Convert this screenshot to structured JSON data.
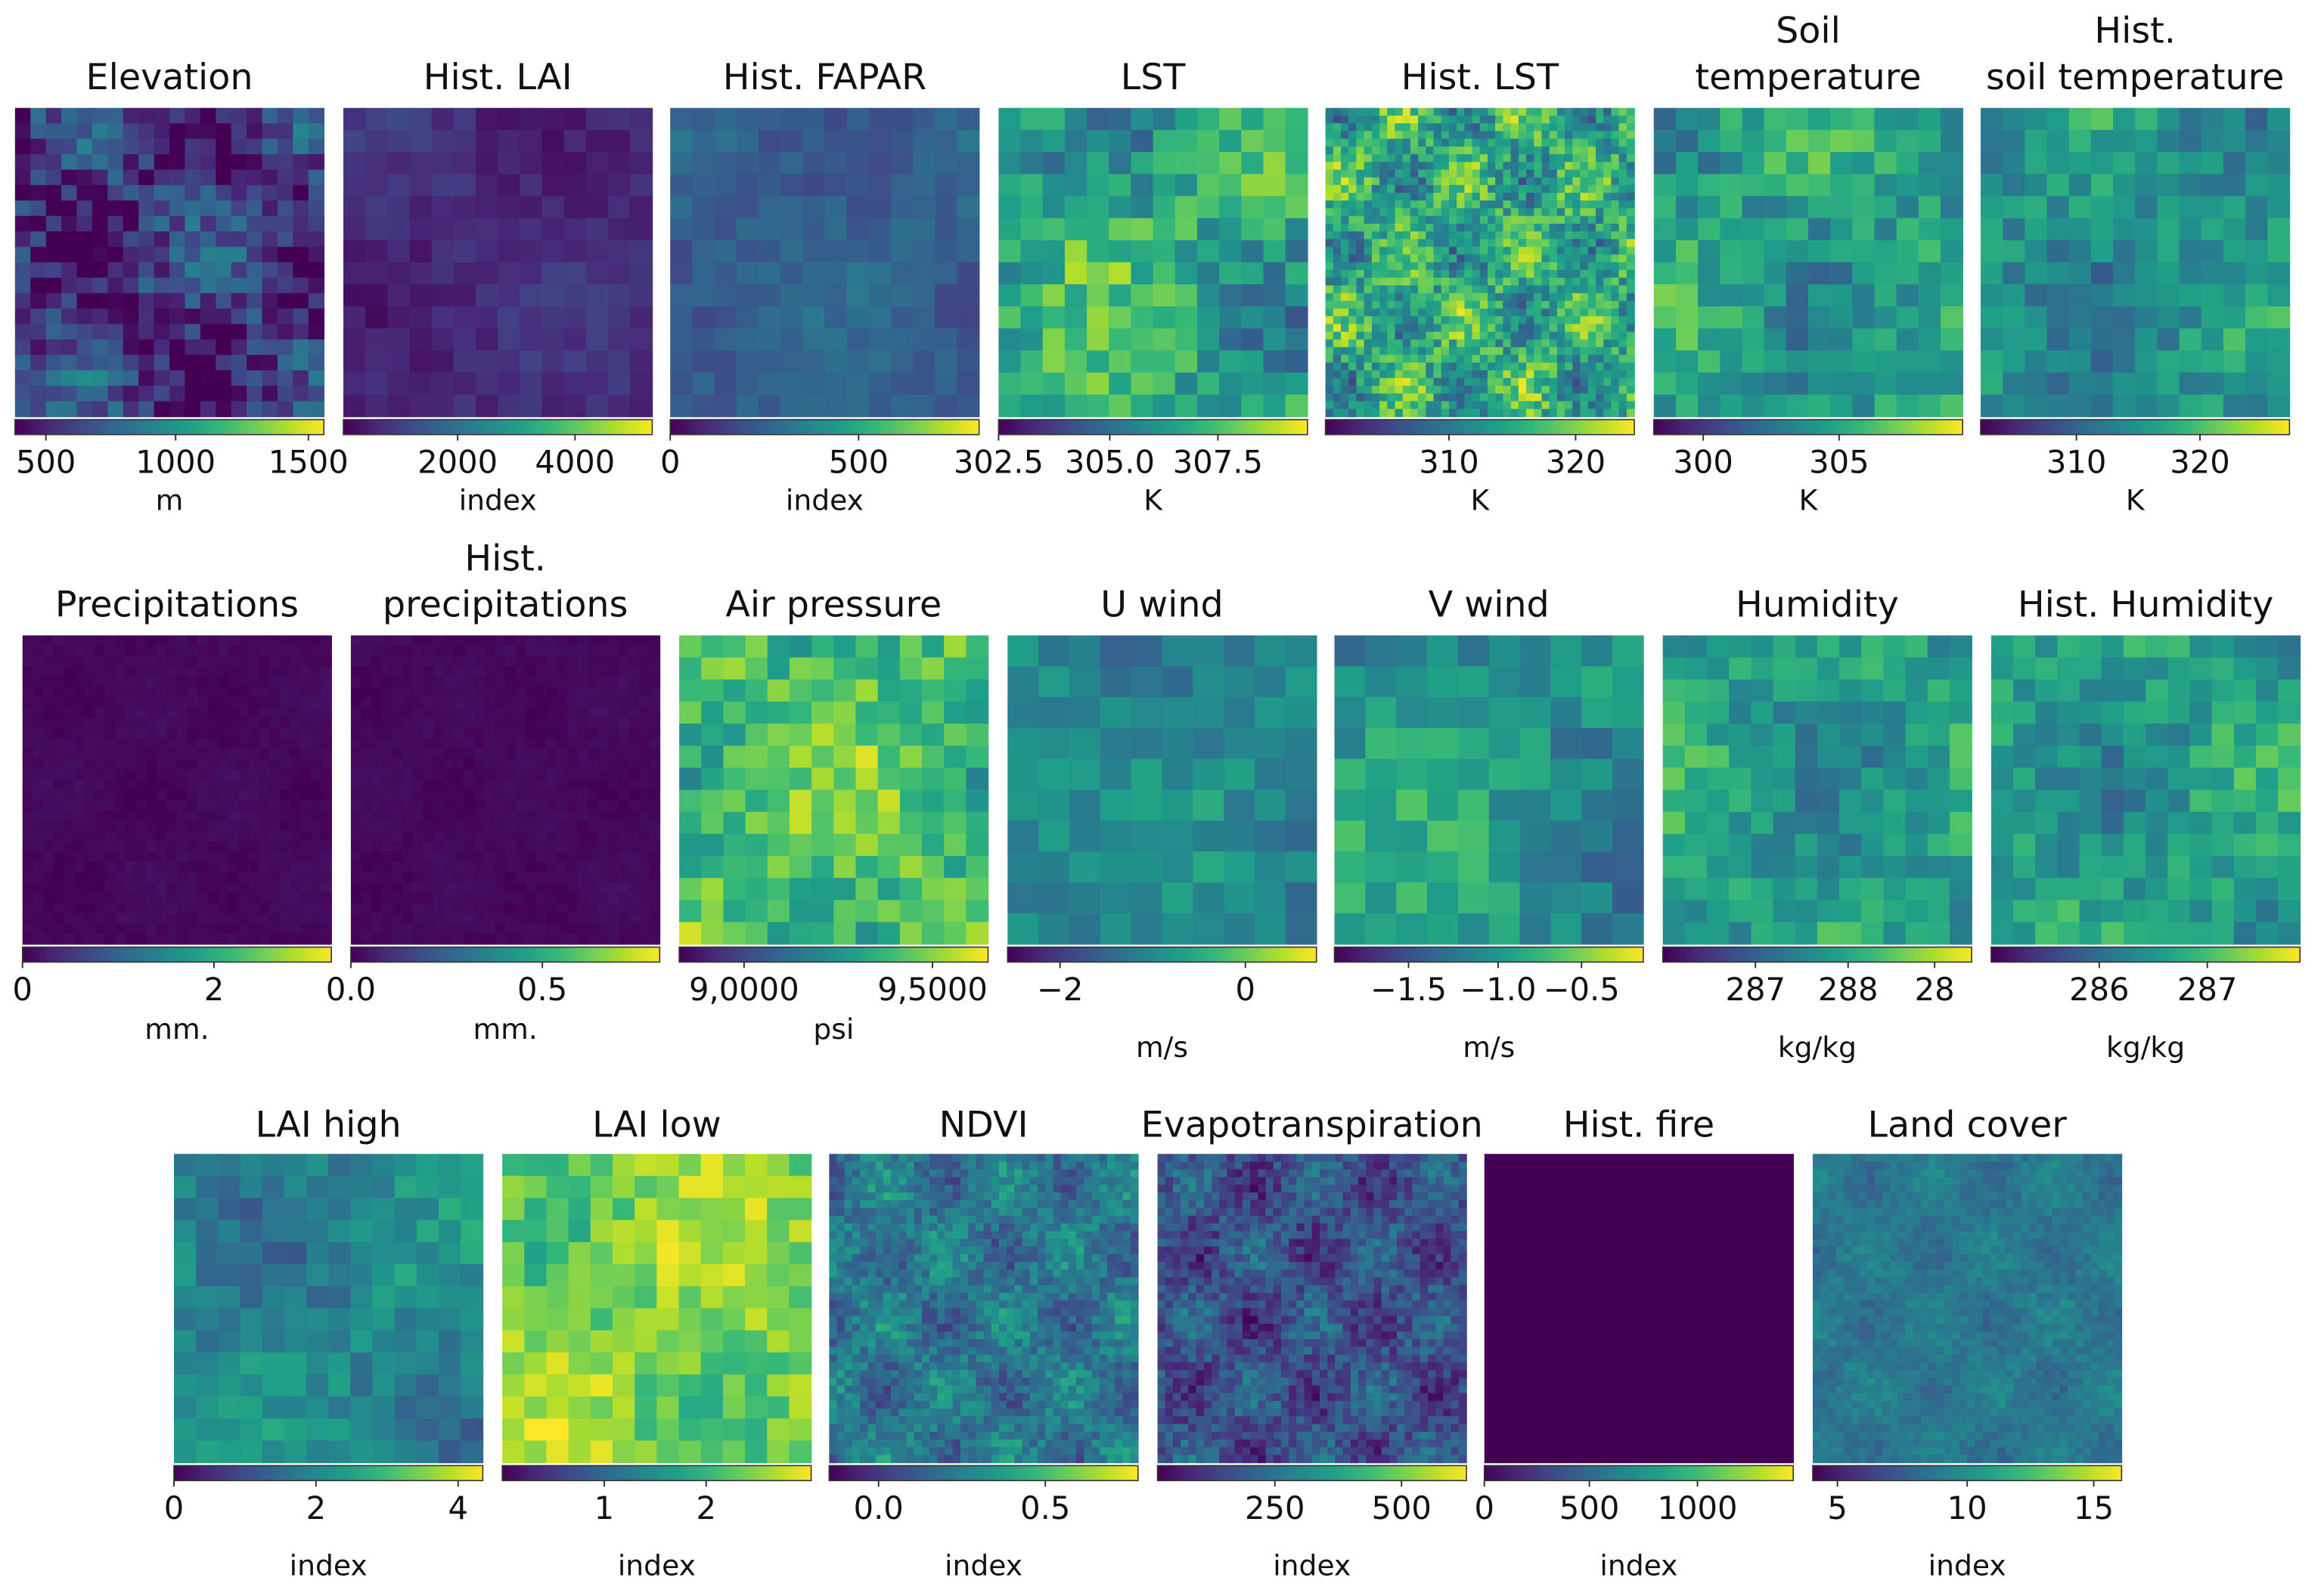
{
  "rows": [
    {
      "panels": [
        {
          "title": [
            "Elevation"
          ],
          "ticks": [
            "500",
            "1000",
            "1500"
          ],
          "unit": "m"
        },
        {
          "title": [
            "Hist. LAI"
          ],
          "ticks": [
            "2000",
            "4000"
          ],
          "unit": "index"
        },
        {
          "title": [
            "Hist. FAPAR"
          ],
          "ticks": [
            "0",
            "500"
          ],
          "unit": "index"
        },
        {
          "title": [
            "LST"
          ],
          "ticks": [
            "302.5",
            "305.0",
            "307.5"
          ],
          "unit": "K"
        },
        {
          "title": [
            "Hist. LST"
          ],
          "ticks": [
            "310",
            "320"
          ],
          "unit": "K"
        },
        {
          "title": [
            "Soil",
            "temperature"
          ],
          "ticks": [
            "300",
            "305"
          ],
          "unit": "K"
        },
        {
          "title": [
            "Hist.",
            "soil temperature"
          ],
          "ticks": [
            "310",
            "320"
          ],
          "unit": "K"
        }
      ]
    },
    {
      "panels": [
        {
          "title": [
            "Precipitations"
          ],
          "ticks": [
            "0",
            "2"
          ],
          "unit": "mm."
        },
        {
          "title": [
            "Hist.",
            "precipitations"
          ],
          "ticks": [
            "0.0",
            "0.5"
          ],
          "unit": "mm."
        },
        {
          "title": [
            "Air pressure"
          ],
          "ticks": [
            "9,0000",
            "9,5000"
          ],
          "unit": "psi"
        },
        {
          "title": [
            "U wind"
          ],
          "ticks": [
            "−2",
            "0"
          ],
          "unit": "m/s"
        },
        {
          "title": [
            "V wind"
          ],
          "ticks": [
            "−1.5",
            "−1.0",
            "−0.5"
          ],
          "unit": "m/s"
        },
        {
          "title": [
            "Humidity"
          ],
          "ticks": [
            "287",
            "288",
            "28"
          ],
          "unit": "kg/kg"
        },
        {
          "title": [
            "Hist. Humidity"
          ],
          "ticks": [
            "286",
            "287"
          ],
          "unit": "kg/kg"
        }
      ]
    },
    {
      "panels": [
        {
          "title": [
            "LAI high"
          ],
          "ticks": [
            "0",
            "2",
            "4"
          ],
          "unit": "index"
        },
        {
          "title": [
            "LAI low"
          ],
          "ticks": [
            "1",
            "2"
          ],
          "unit": "index"
        },
        {
          "title": [
            "NDVI"
          ],
          "ticks": [
            "0.0",
            "0.5"
          ],
          "unit": "index"
        },
        {
          "title": [
            "Evapotranspiration"
          ],
          "ticks": [
            "250",
            "500"
          ],
          "unit": "index"
        },
        {
          "title": [
            "Hist. fire"
          ],
          "ticks": [
            "0",
            "500",
            "1000"
          ],
          "unit": "index"
        },
        {
          "title": [
            "Land cover"
          ],
          "ticks": [
            "5",
            "10",
            "15"
          ],
          "unit": "index"
        }
      ]
    }
  ]
}
